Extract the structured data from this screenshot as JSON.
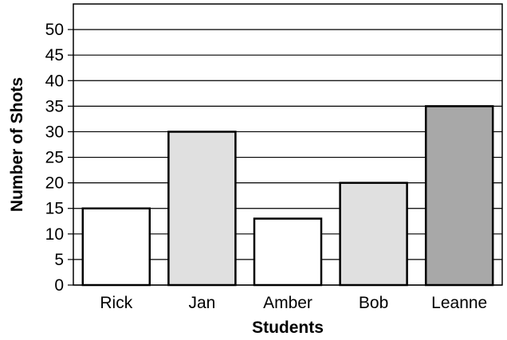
{
  "chart_data": {
    "type": "bar",
    "categories": [
      "Rick",
      "Jan",
      "Amber",
      "Bob",
      "Leanne"
    ],
    "values": [
      15,
      30,
      13,
      20,
      35
    ],
    "bar_colors": [
      "#ffffff",
      "#e0e0e0",
      "#ffffff",
      "#e0e0e0",
      "#a8a8a8"
    ],
    "xlabel": "Students",
    "ylabel": "Number of Shots",
    "ylim": [
      0,
      55
    ],
    "yticks": [
      0,
      5,
      10,
      15,
      20,
      25,
      30,
      35,
      40,
      45,
      50
    ],
    "grid": true
  }
}
